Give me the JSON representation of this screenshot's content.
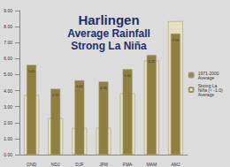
{
  "chart_data": {
    "type": "bar",
    "title": "Harlingen\nAverage Rainfall\nStrong La Niña",
    "categories": [
      "OND",
      "NDJ",
      "DJF",
      "JFM",
      "FMA",
      "MAM",
      "AMJ"
    ],
    "series": [
      {
        "name": "Strong La Niña (< -1.0) Average",
        "color": "#e6dfc2",
        "values": [
          3.73,
          2.28,
          1.66,
          1.67,
          3.83,
          5.88,
          8.34
        ]
      },
      {
        "name": "1971-2000 Average",
        "color": "#8f8040",
        "values": [
          5.61,
          4.11,
          4.64,
          4.56,
          5.34,
          6.22,
          7.56
        ]
      }
    ],
    "ylim": [
      0,
      9
    ],
    "yticks": [
      {
        "value": 0,
        "label": "0.00"
      },
      {
        "value": 1,
        "label": "1.00"
      },
      {
        "value": 2,
        "label": "2.00"
      },
      {
        "value": 3,
        "label": "3.00"
      },
      {
        "value": 4,
        "label": "4.00"
      },
      {
        "value": 5,
        "label": "5.00"
      },
      {
        "value": 6,
        "label": "6.00"
      },
      {
        "value": 7,
        "label": "7.00"
      },
      {
        "value": 8,
        "label": "8.00"
      },
      {
        "value": 9,
        "label": "9.00"
      }
    ],
    "data_labels": true,
    "legend": "right",
    "grid": false
  }
}
